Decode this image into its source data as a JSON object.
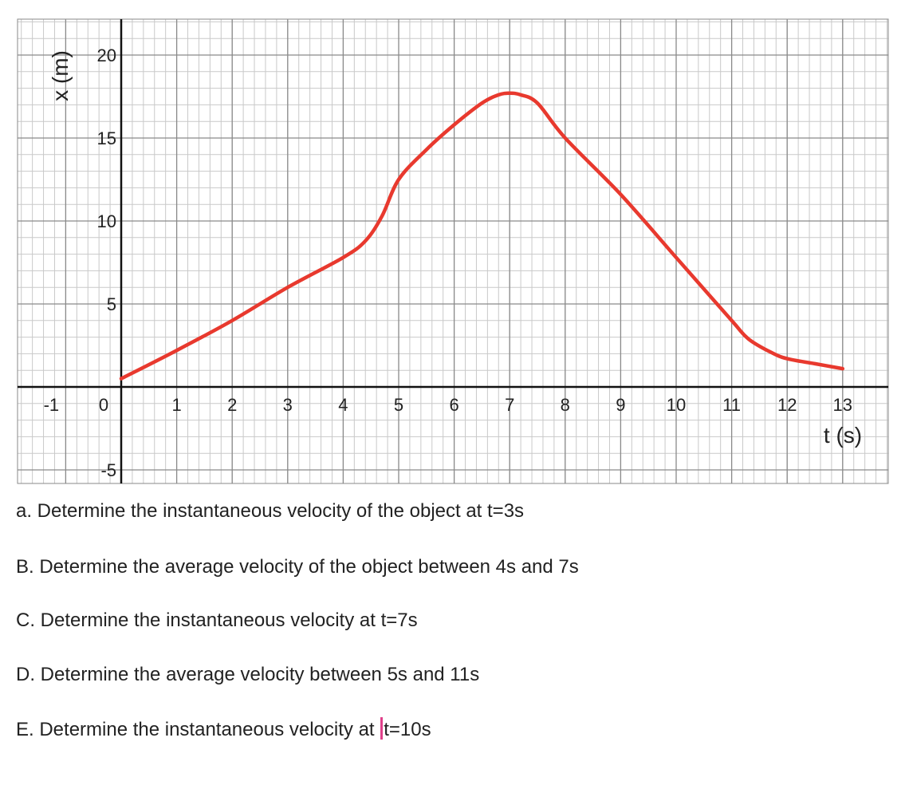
{
  "chart_data": {
    "type": "line",
    "title": "",
    "xlabel": "t (s)",
    "ylabel": "x (m)",
    "xlim": [
      -1.5,
      13.5
    ],
    "ylim": [
      -6,
      23
    ],
    "x_ticks": [
      -1,
      0,
      1,
      2,
      3,
      4,
      5,
      6,
      7,
      8,
      9,
      10,
      11,
      12,
      13
    ],
    "y_ticks": [
      -5,
      5,
      10,
      15,
      20
    ],
    "grid": true,
    "line_color": "#e8392e",
    "series": [
      {
        "x": [
          0,
          1,
          2,
          3,
          4,
          4.4,
          4.7,
          5,
          5.5,
          6,
          6.5,
          6.8,
          7,
          7.2,
          7.5,
          8,
          9,
          10,
          11,
          11.3,
          11.7,
          12,
          12.5,
          13
        ],
        "y": [
          0.5,
          2.2,
          4,
          6,
          7.8,
          8.8,
          10.3,
          12.5,
          14.3,
          15.8,
          17.1,
          17.6,
          17.7,
          17.6,
          17.1,
          15,
          11.6,
          7.8,
          4,
          2.9,
          2.1,
          1.7,
          1.4,
          1.1
        ]
      }
    ]
  },
  "questions": [
    "a. Determine the instantaneous velocity of the object at t=3s",
    "B. Determine the average velocity of the object between 4s and 7s",
    "C. Determine the instantaneous velocity at t=7s",
    "D. Determine the average velocity between 5s and 11s",
    {
      "before": "E. Determine the instantaneous velocity at ",
      "after": "t=10s"
    }
  ]
}
